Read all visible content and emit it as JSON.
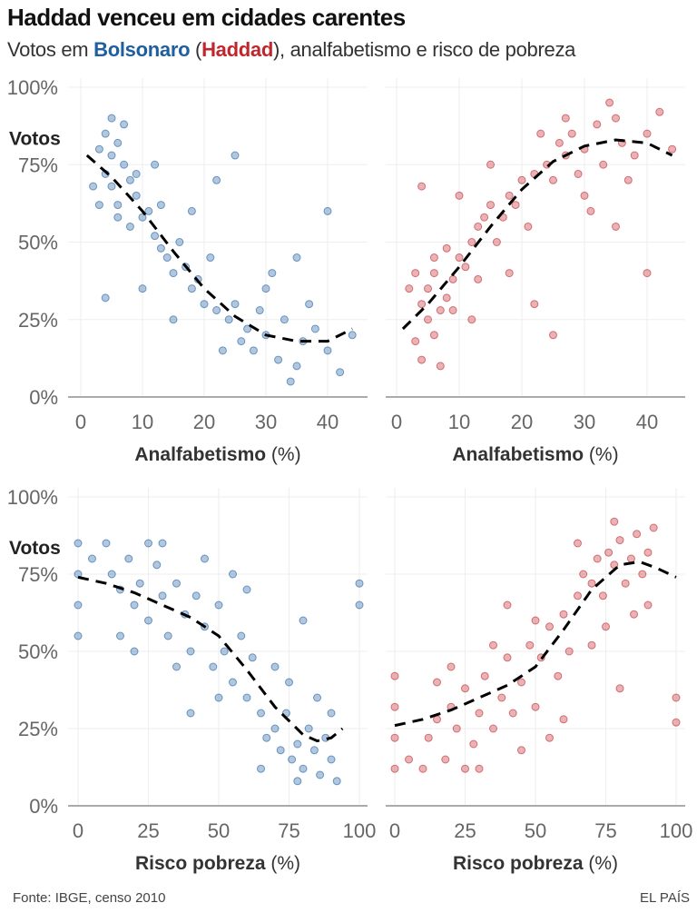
{
  "title": "Haddad venceu em cidades carentes",
  "subtitle": {
    "pre": "Votos em ",
    "bolsonaro": "Bolsonaro",
    "open": " (",
    "haddad": "Haddad",
    "post": "), analfabetismo e risco de pobreza"
  },
  "source": "Fonte: IBGE, censo 2010",
  "brand": "EL PAÍS",
  "colors": {
    "bolsonaro": "#1f5fa0",
    "haddad": "#c0262d"
  },
  "chart_data": [
    {
      "type": "scatter",
      "candidate": "Bolsonaro",
      "ylabel": "Votos",
      "xlabel_bold": "Analfabetismo",
      "xlabel_unit": " (%)",
      "xlim": [
        0,
        45
      ],
      "ylim": [
        0,
        100
      ],
      "xticks": [
        "0",
        "10",
        "20",
        "30",
        "40"
      ],
      "xtick_values": [
        0,
        10,
        20,
        30,
        40
      ],
      "yticks": [
        "0%",
        "25%",
        "50%",
        "75%",
        "100%"
      ],
      "trend_style": "dashed-black",
      "trend": [
        [
          1,
          78
        ],
        [
          5,
          71
        ],
        [
          10,
          60
        ],
        [
          15,
          47
        ],
        [
          20,
          35
        ],
        [
          25,
          26
        ],
        [
          30,
          20
        ],
        [
          35,
          18
        ],
        [
          40,
          18
        ],
        [
          44,
          22
        ]
      ],
      "points": [
        [
          3,
          80
        ],
        [
          4,
          85
        ],
        [
          5,
          78
        ],
        [
          6,
          82
        ],
        [
          4,
          72
        ],
        [
          7,
          75
        ],
        [
          5,
          68
        ],
        [
          8,
          70
        ],
        [
          6,
          62
        ],
        [
          9,
          65
        ],
        [
          3,
          62
        ],
        [
          10,
          58
        ],
        [
          8,
          55
        ],
        [
          11,
          60
        ],
        [
          12,
          52
        ],
        [
          13,
          48
        ],
        [
          7,
          88
        ],
        [
          5,
          90
        ],
        [
          14,
          45
        ],
        [
          15,
          40
        ],
        [
          16,
          50
        ],
        [
          18,
          35
        ],
        [
          17,
          42
        ],
        [
          20,
          30
        ],
        [
          22,
          28
        ],
        [
          19,
          38
        ],
        [
          24,
          25
        ],
        [
          25,
          30
        ],
        [
          27,
          22
        ],
        [
          26,
          18
        ],
        [
          28,
          15
        ],
        [
          30,
          20
        ],
        [
          32,
          12
        ],
        [
          33,
          25
        ],
        [
          35,
          10
        ],
        [
          36,
          18
        ],
        [
          38,
          22
        ],
        [
          40,
          15
        ],
        [
          42,
          8
        ],
        [
          44,
          20
        ],
        [
          30,
          35
        ],
        [
          22,
          70
        ],
        [
          25,
          78
        ],
        [
          35,
          45
        ],
        [
          40,
          60
        ],
        [
          12,
          75
        ],
        [
          10,
          35
        ],
        [
          4,
          32
        ],
        [
          2,
          68
        ],
        [
          9,
          72
        ],
        [
          6,
          58
        ],
        [
          13,
          62
        ],
        [
          21,
          45
        ],
        [
          29,
          28
        ],
        [
          37,
          30
        ],
        [
          34,
          5
        ],
        [
          15,
          25
        ],
        [
          18,
          60
        ],
        [
          23,
          15
        ],
        [
          31,
          40
        ]
      ]
    },
    {
      "type": "scatter",
      "candidate": "Haddad",
      "xlabel_bold": "Analfabetismo",
      "xlabel_unit": " (%)",
      "xlim": [
        0,
        45
      ],
      "ylim": [
        0,
        100
      ],
      "xticks": [
        "0",
        "10",
        "20",
        "30",
        "40"
      ],
      "xtick_values": [
        0,
        10,
        20,
        30,
        40
      ],
      "trend_style": "dashed-black",
      "trend": [
        [
          1,
          22
        ],
        [
          5,
          30
        ],
        [
          10,
          42
        ],
        [
          15,
          55
        ],
        [
          20,
          67
        ],
        [
          25,
          76
        ],
        [
          30,
          81
        ],
        [
          35,
          83
        ],
        [
          40,
          82
        ],
        [
          44,
          78
        ]
      ],
      "points": [
        [
          3,
          18
        ],
        [
          4,
          12
        ],
        [
          5,
          25
        ],
        [
          6,
          20
        ],
        [
          4,
          30
        ],
        [
          7,
          28
        ],
        [
          5,
          35
        ],
        [
          8,
          32
        ],
        [
          6,
          40
        ],
        [
          9,
          38
        ],
        [
          3,
          40
        ],
        [
          10,
          45
        ],
        [
          8,
          48
        ],
        [
          11,
          42
        ],
        [
          12,
          50
        ],
        [
          13,
          55
        ],
        [
          7,
          10
        ],
        [
          14,
          58
        ],
        [
          15,
          62
        ],
        [
          16,
          50
        ],
        [
          18,
          65
        ],
        [
          17,
          58
        ],
        [
          20,
          70
        ],
        [
          22,
          72
        ],
        [
          19,
          62
        ],
        [
          24,
          75
        ],
        [
          25,
          70
        ],
        [
          27,
          78
        ],
        [
          26,
          82
        ],
        [
          28,
          85
        ],
        [
          30,
          80
        ],
        [
          32,
          88
        ],
        [
          33,
          75
        ],
        [
          35,
          90
        ],
        [
          36,
          82
        ],
        [
          38,
          78
        ],
        [
          40,
          85
        ],
        [
          42,
          92
        ],
        [
          44,
          80
        ],
        [
          30,
          65
        ],
        [
          22,
          30
        ],
        [
          25,
          20
        ],
        [
          35,
          55
        ],
        [
          40,
          40
        ],
        [
          12,
          25
        ],
        [
          10,
          65
        ],
        [
          4,
          68
        ],
        [
          2,
          35
        ],
        [
          9,
          28
        ],
        [
          6,
          45
        ],
        [
          13,
          38
        ],
        [
          21,
          55
        ],
        [
          29,
          72
        ],
        [
          37,
          70
        ],
        [
          34,
          95
        ],
        [
          15,
          75
        ],
        [
          18,
          40
        ],
        [
          23,
          85
        ],
        [
          31,
          60
        ],
        [
          27,
          90
        ]
      ]
    },
    {
      "type": "scatter",
      "candidate": "Bolsonaro",
      "ylabel": "Votos",
      "xlabel_bold": "Risco pobreza",
      "xlabel_unit": " (%)",
      "xlim": [
        0,
        100
      ],
      "ylim": [
        0,
        100
      ],
      "xticks": [
        "0",
        "25",
        "50",
        "75",
        "100"
      ],
      "xtick_values": [
        0,
        25,
        50,
        75,
        100
      ],
      "yticks": [
        "0%",
        "25%",
        "50%",
        "75%",
        "100%"
      ],
      "trend_style": "dashed-black",
      "trend": [
        [
          0,
          74
        ],
        [
          10,
          72
        ],
        [
          20,
          69
        ],
        [
          30,
          65
        ],
        [
          40,
          61
        ],
        [
          50,
          55
        ],
        [
          60,
          44
        ],
        [
          70,
          32
        ],
        [
          80,
          23
        ],
        [
          85,
          21
        ],
        [
          90,
          22
        ],
        [
          94,
          25
        ]
      ],
      "points": [
        [
          0,
          85
        ],
        [
          0,
          75
        ],
        [
          0,
          65
        ],
        [
          0,
          55
        ],
        [
          5,
          80
        ],
        [
          10,
          85
        ],
        [
          12,
          75
        ],
        [
          15,
          70
        ],
        [
          18,
          80
        ],
        [
          20,
          65
        ],
        [
          22,
          72
        ],
        [
          25,
          60
        ],
        [
          28,
          78
        ],
        [
          30,
          68
        ],
        [
          32,
          55
        ],
        [
          35,
          72
        ],
        [
          38,
          62
        ],
        [
          40,
          50
        ],
        [
          42,
          68
        ],
        [
          45,
          58
        ],
        [
          48,
          45
        ],
        [
          50,
          65
        ],
        [
          52,
          50
        ],
        [
          55,
          40
        ],
        [
          58,
          55
        ],
        [
          60,
          35
        ],
        [
          62,
          48
        ],
        [
          65,
          30
        ],
        [
          67,
          22
        ],
        [
          70,
          25
        ],
        [
          72,
          18
        ],
        [
          74,
          30
        ],
        [
          76,
          15
        ],
        [
          78,
          20
        ],
        [
          80,
          12
        ],
        [
          82,
          25
        ],
        [
          84,
          18
        ],
        [
          86,
          10
        ],
        [
          88,
          22
        ],
        [
          90,
          15
        ],
        [
          92,
          8
        ],
        [
          70,
          45
        ],
        [
          60,
          70
        ],
        [
          75,
          40
        ],
        [
          85,
          35
        ],
        [
          45,
          80
        ],
        [
          35,
          45
        ],
        [
          15,
          55
        ],
        [
          25,
          85
        ],
        [
          55,
          75
        ],
        [
          80,
          60
        ],
        [
          90,
          30
        ],
        [
          100,
          72
        ],
        [
          100,
          65
        ],
        [
          65,
          12
        ],
        [
          40,
          30
        ],
        [
          20,
          50
        ],
        [
          30,
          85
        ],
        [
          50,
          35
        ],
        [
          78,
          8
        ]
      ]
    },
    {
      "type": "scatter",
      "candidate": "Haddad",
      "xlabel_bold": "Risco pobreza",
      "xlabel_unit": " (%)",
      "xlim": [
        0,
        100
      ],
      "ylim": [
        0,
        100
      ],
      "xticks": [
        "0",
        "25",
        "50",
        "75",
        "100"
      ],
      "xtick_values": [
        0,
        25,
        50,
        75,
        100
      ],
      "trend_style": "dashed-black",
      "trend": [
        [
          0,
          26
        ],
        [
          10,
          28
        ],
        [
          20,
          31
        ],
        [
          30,
          35
        ],
        [
          40,
          39
        ],
        [
          50,
          45
        ],
        [
          60,
          57
        ],
        [
          70,
          70
        ],
        [
          80,
          78
        ],
        [
          87,
          79
        ],
        [
          93,
          77
        ],
        [
          100,
          74
        ]
      ],
      "points": [
        [
          0,
          12
        ],
        [
          0,
          22
        ],
        [
          0,
          32
        ],
        [
          0,
          42
        ],
        [
          5,
          15
        ],
        [
          10,
          12
        ],
        [
          12,
          22
        ],
        [
          15,
          28
        ],
        [
          18,
          15
        ],
        [
          20,
          32
        ],
        [
          22,
          25
        ],
        [
          25,
          38
        ],
        [
          28,
          20
        ],
        [
          30,
          30
        ],
        [
          32,
          42
        ],
        [
          35,
          25
        ],
        [
          38,
          35
        ],
        [
          40,
          48
        ],
        [
          42,
          30
        ],
        [
          45,
          40
        ],
        [
          48,
          52
        ],
        [
          50,
          32
        ],
        [
          52,
          48
        ],
        [
          55,
          58
        ],
        [
          58,
          42
        ],
        [
          60,
          62
        ],
        [
          62,
          50
        ],
        [
          65,
          68
        ],
        [
          67,
          75
        ],
        [
          70,
          72
        ],
        [
          72,
          80
        ],
        [
          74,
          68
        ],
        [
          76,
          82
        ],
        [
          78,
          78
        ],
        [
          80,
          86
        ],
        [
          82,
          72
        ],
        [
          84,
          80
        ],
        [
          86,
          88
        ],
        [
          88,
          75
        ],
        [
          90,
          82
        ],
        [
          92,
          90
        ],
        [
          70,
          52
        ],
        [
          60,
          28
        ],
        [
          75,
          58
        ],
        [
          85,
          62
        ],
        [
          45,
          18
        ],
        [
          35,
          52
        ],
        [
          15,
          40
        ],
        [
          25,
          12
        ],
        [
          55,
          22
        ],
        [
          80,
          38
        ],
        [
          90,
          65
        ],
        [
          100,
          27
        ],
        [
          100,
          35
        ],
        [
          65,
          85
        ],
        [
          40,
          65
        ],
        [
          20,
          45
        ],
        [
          30,
          12
        ],
        [
          50,
          60
        ],
        [
          78,
          92
        ]
      ]
    }
  ]
}
